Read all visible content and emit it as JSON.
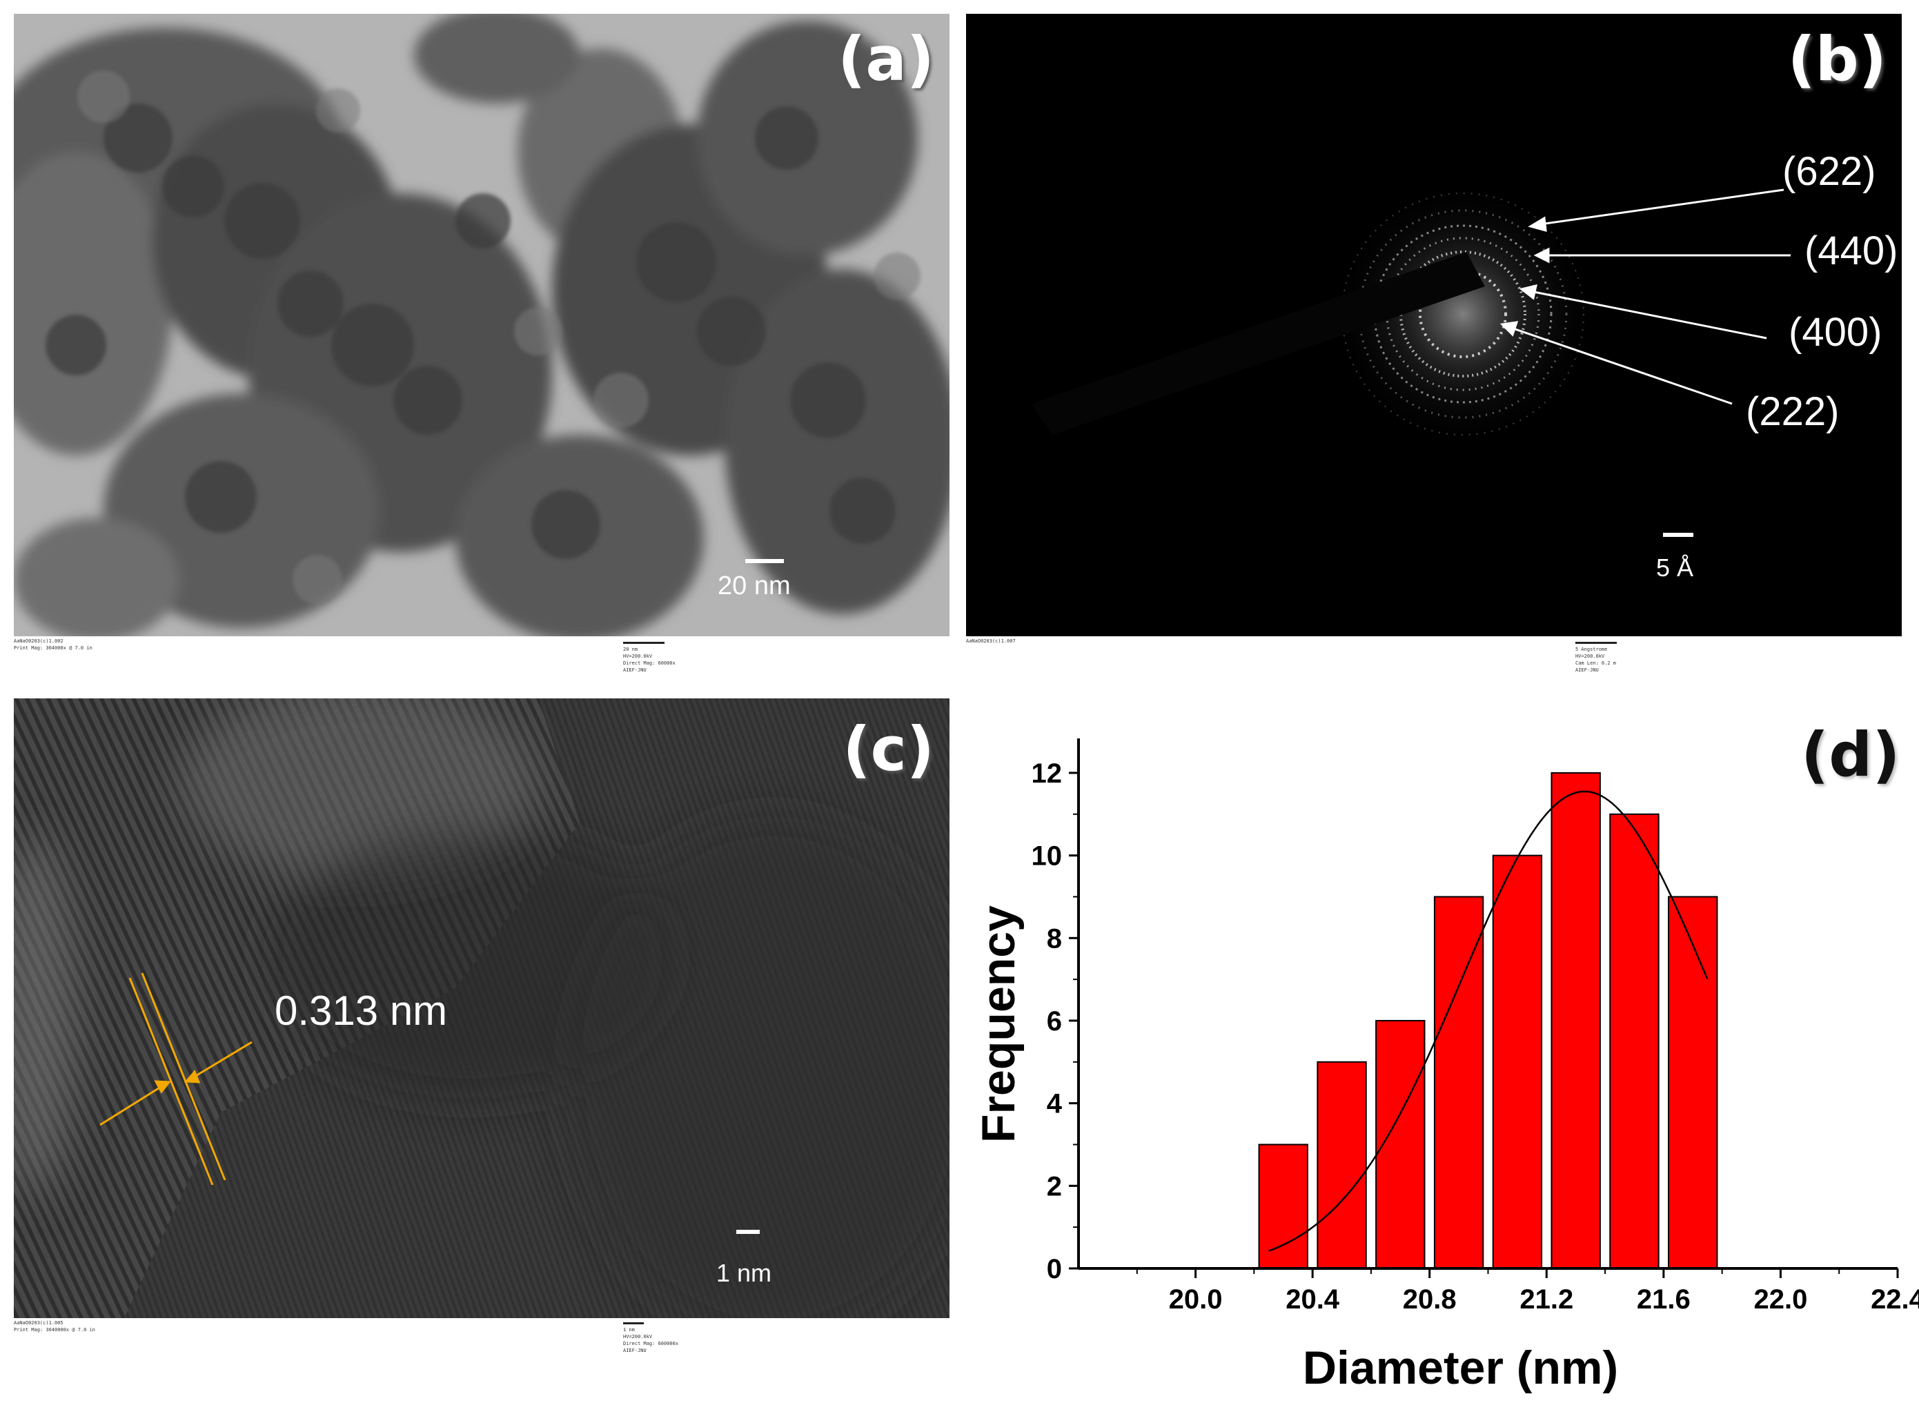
{
  "panels": {
    "a": {
      "label": "(a)",
      "scale_label": "20 nm",
      "footer_left": [
        "AaNaO0203(c)1.002",
        "Print Mag: 364000x @ 7.0 in"
      ],
      "footer_right": [
        "20 nm",
        "HV=200.0kV",
        "Direct Mag: 60000x",
        "AIEF-JNU"
      ]
    },
    "b": {
      "label": "(b)",
      "scale_label": "5 Å",
      "rings": [
        "(622)",
        "(440)",
        "(400)",
        "(222)"
      ],
      "footer_left": [
        "AaNaO0203(c)1.007"
      ],
      "footer_right": [
        "5 Angstrome",
        "HV=200.0kV",
        "Cam Len: 0.2 m",
        "AIEF-JNU"
      ]
    },
    "c": {
      "label": "(c)",
      "spacing_label": "0.313 nm",
      "scale_label": "1 nm",
      "footer_left": [
        "AaNaO0203(c)1.005",
        "Print Mag: 3640000x @ 7.0 in"
      ],
      "footer_right": [
        "1 nm",
        "HV=200.0kV",
        "Direct Mag: 600000x",
        "AIEF-JNU"
      ]
    },
    "d": {
      "label": "(d)"
    }
  },
  "colors": {
    "bar_fill": "#ff0000",
    "bar_stroke": "#000000",
    "fit_curve": "#000000",
    "annotation": "#f2a800"
  },
  "chart_data": {
    "type": "bar",
    "xlabel": "Diameter (nm)",
    "ylabel": "Frequency",
    "xlim": [
      19.6,
      22.4
    ],
    "ylim": [
      0,
      12.5
    ],
    "xticks": [
      "20.0",
      "20.4",
      "20.8",
      "21.2",
      "21.6",
      "22.0",
      "22.4"
    ],
    "yticks": [
      "0",
      "2",
      "4",
      "6",
      "8",
      "10",
      "12"
    ],
    "bin_width": 0.2,
    "bins": [
      {
        "x": 20.3,
        "y": 3
      },
      {
        "x": 20.5,
        "y": 5
      },
      {
        "x": 20.7,
        "y": 6
      },
      {
        "x": 20.9,
        "y": 9
      },
      {
        "x": 21.1,
        "y": 10
      },
      {
        "x": 21.3,
        "y": 12
      },
      {
        "x": 21.5,
        "y": 11
      },
      {
        "x": 21.7,
        "y": 9
      }
    ],
    "fit": {
      "type": "gaussian",
      "x_range": [
        20.25,
        21.75
      ],
      "center": 21.33,
      "peak": 11.55,
      "sigma": 0.42
    }
  }
}
